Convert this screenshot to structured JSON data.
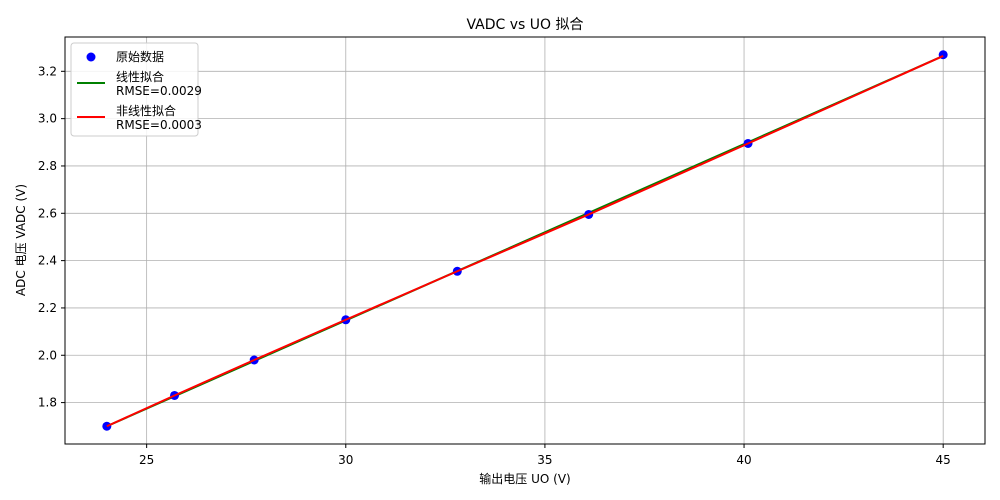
{
  "chart_data": {
    "type": "scatter",
    "title": "VADC vs UO 拟合",
    "xlabel": "输出电压 UO (V)",
    "ylabel": "ADC 电压 VADC (V)",
    "xlim": [
      22.95,
      46.05
    ],
    "ylim": [
      1.625,
      3.345
    ],
    "xticks": [
      25,
      30,
      35,
      40,
      45
    ],
    "yticks": [
      1.8,
      2.0,
      2.2,
      2.4,
      2.6,
      2.8,
      3.0,
      3.2
    ],
    "grid": true,
    "legend_position": "top-left",
    "series": [
      {
        "name": "原始数据",
        "kind": "scatter",
        "color": "#0000ff",
        "x": [
          24.0,
          25.7,
          27.7,
          30.0,
          32.8,
          36.1,
          40.1,
          45.0
        ],
        "y": [
          1.7,
          1.83,
          1.98,
          2.15,
          2.355,
          2.595,
          2.895,
          3.27
        ]
      },
      {
        "name": "线性拟合",
        "sublabel": "RMSE=0.0029",
        "kind": "line",
        "color": "#008000",
        "x": [
          24.0,
          45.0
        ],
        "y": [
          1.7,
          3.265
        ]
      },
      {
        "name": "非线性拟合",
        "sublabel": "RMSE=0.0003",
        "kind": "line",
        "color": "#ff0000",
        "x": [
          24.0,
          25.7,
          27.7,
          30.0,
          32.8,
          36.1,
          40.1,
          45.0
        ],
        "y": [
          1.7,
          1.83,
          1.98,
          2.15,
          2.355,
          2.595,
          2.895,
          3.265
        ]
      }
    ]
  }
}
